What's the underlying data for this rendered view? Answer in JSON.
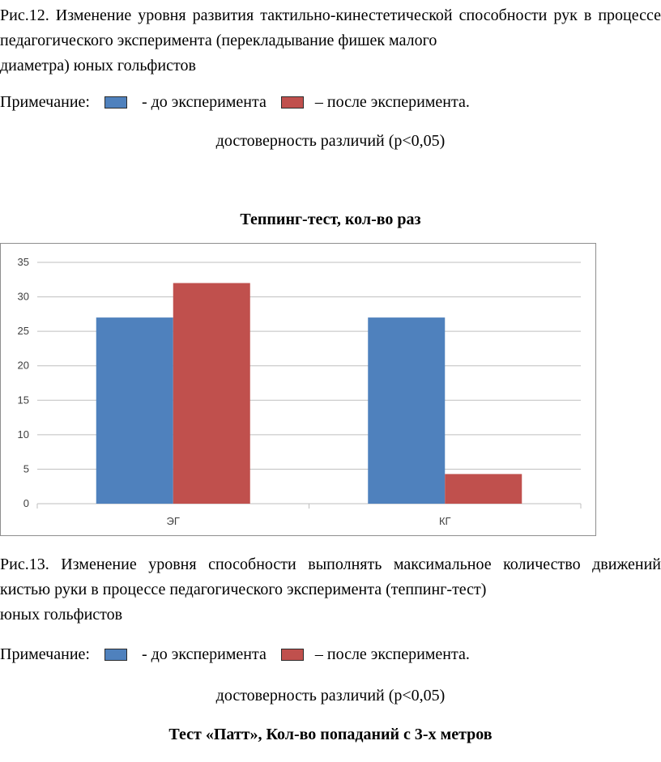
{
  "fig12": {
    "caption_l1": "Рис.12. Изменение уровня развития тактильно-кинестетической способности рук",
    "caption_l2": "в процессе педагогического эксперимента (перекладывание фишек малого",
    "caption_l3": "диаметра) юных гольфистов"
  },
  "note": {
    "label": "Примечание:",
    "before": "- до эксперимента",
    "after": "– после эксперимента.",
    "significance": "достоверность различий (р<0,05)"
  },
  "colors": {
    "before": "#4f81bd",
    "after": "#c0504d",
    "grid": "#bfbfbf"
  },
  "chart_data": {
    "type": "bar",
    "title": "Теппинг-тест, кол-во раз",
    "categories": [
      "ЭГ",
      "КГ"
    ],
    "series": [
      {
        "values": [
          27,
          27
        ],
        "color": "#4f81bd"
      },
      {
        "values": [
          32,
          4.3
        ],
        "color": "#c0504d"
      }
    ],
    "ylim": [
      0,
      35
    ],
    "yticks": [
      0,
      5,
      10,
      15,
      20,
      25,
      30,
      35
    ],
    "grid": true,
    "legend": "none"
  },
  "fig13": {
    "caption_l1": "Рис.13. Изменение уровня способности выполнять максимальное количество",
    "caption_l2": "движений кистью руки в процессе педагогического эксперимента (теппинг-тест)",
    "caption_l3": "юных гольфистов"
  },
  "next_chart_title": "Тест «Патт», Кол-во попаданий с 3-х метров"
}
